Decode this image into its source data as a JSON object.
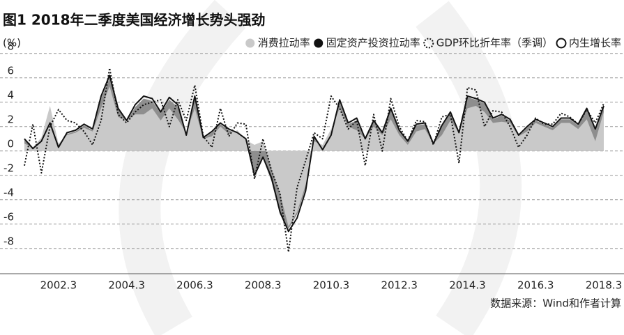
{
  "chart_data": {
    "type": "line",
    "title": "图1 2018年二季度美国经济增长势头强劲",
    "y_label": "(%)",
    "source": "数据来源：Wind和作者计算",
    "categories": [
      null,
      null,
      null,
      null,
      "2002.3",
      null,
      null,
      null,
      null,
      null,
      null,
      null,
      "2004.3",
      null,
      null,
      null,
      null,
      null,
      null,
      null,
      "2006.3",
      null,
      null,
      null,
      null,
      null,
      null,
      null,
      "2008.3",
      null,
      null,
      null,
      null,
      null,
      null,
      null,
      "2010.3",
      null,
      null,
      null,
      null,
      null,
      null,
      null,
      "2012.3",
      null,
      null,
      null,
      null,
      null,
      null,
      null,
      "2014.3",
      null,
      null,
      null,
      null,
      null,
      null,
      null,
      "2016.3",
      null,
      null,
      null,
      null,
      null,
      null,
      null,
      "2018.3"
    ],
    "ylim": [
      -9.5,
      8.5
    ],
    "yticks": [
      -8,
      -6,
      -4,
      -2,
      0,
      2,
      4,
      6,
      8
    ],
    "grid": true,
    "series": [
      {
        "name": "固定资产投资拉动率",
        "style": "area",
        "color": "#8e8e8e",
        "values": [
          0.9,
          0.2,
          0.7,
          2.2,
          0.3,
          1.4,
          1.6,
          2.1,
          1.7,
          4.3,
          6.0,
          3.4,
          2.4,
          3.6,
          4.3,
          4.1,
          3.1,
          4.2,
          3.6,
          1.2,
          4.3,
          1.0,
          1.5,
          2.2,
          1.7,
          1.4,
          0.9,
          -1.8,
          -0.6,
          -2.5,
          -5.2,
          -6.4,
          -5.2,
          -3.1,
          1.1,
          0.1,
          1.2,
          4.0,
          2.2,
          2.5,
          0.9,
          2.4,
          1.4,
          3.4,
          1.6,
          0.7,
          2.1,
          2.2,
          0.5,
          2.0,
          3.1,
          1.4,
          4.4,
          4.2,
          3.9,
          2.6,
          2.9,
          2.5,
          1.2,
          1.9,
          2.5,
          2.2,
          1.9,
          2.6,
          2.6,
          2.1,
          3.4,
          1.7,
          3.6
        ]
      },
      {
        "name": "消费拉动率",
        "style": "area",
        "color": "#c9c9c9",
        "values": [
          0.6,
          0.3,
          1.1,
          3.7,
          0.6,
          1.3,
          1.5,
          1.9,
          1.6,
          3.5,
          5.3,
          2.8,
          2.5,
          3.0,
          3.0,
          3.5,
          2.5,
          3.5,
          2.6,
          1.5,
          3.5,
          1.0,
          1.2,
          2.0,
          1.4,
          1.7,
          0.9,
          0.5,
          0.8,
          -1.5,
          -3.5,
          -6.2,
          -5.0,
          -2.8,
          0.8,
          0.5,
          1.8,
          3.5,
          2.0,
          1.7,
          1.0,
          2.0,
          1.3,
          2.6,
          1.3,
          0.5,
          1.6,
          1.8,
          0.6,
          1.3,
          2.5,
          1.5,
          3.5,
          3.7,
          3.2,
          2.3,
          2.4,
          2.3,
          1.2,
          1.6,
          2.3,
          2.0,
          1.7,
          2.3,
          2.3,
          1.8,
          2.6,
          0.8,
          3.2
        ]
      },
      {
        "name": "GDP环比折年率（季调）",
        "style": "dotted",
        "color": "#111111",
        "values": [
          -1.2,
          2.2,
          -1.8,
          2.0,
          3.4,
          2.5,
          2.3,
          1.6,
          0.5,
          2.5,
          6.8,
          3.0,
          2.3,
          3.2,
          3.8,
          4.0,
          4.2,
          2.0,
          4.2,
          2.5,
          5.4,
          1.2,
          0.3,
          3.5,
          1.2,
          2.3,
          2.2,
          -2.3,
          1.0,
          -1.6,
          -3.5,
          -8.3,
          -3.0,
          -0.8,
          1.5,
          1.0,
          4.5,
          3.5,
          1.8,
          2.5,
          -1.2,
          3.0,
          0.0,
          4.3,
          2.0,
          0.8,
          2.5,
          2.4,
          0.5,
          2.8,
          3.0,
          -1.0,
          5.2,
          5.0,
          2.0,
          3.3,
          3.2,
          2.0,
          0.3,
          1.3,
          2.7,
          2.2,
          2.2,
          3.1,
          2.8,
          2.2,
          3.4,
          2.3,
          3.9
        ]
      },
      {
        "name": "内生增长率",
        "style": "solid",
        "color": "#111111",
        "values": [
          1.0,
          0.2,
          0.8,
          2.3,
          0.3,
          1.5,
          1.7,
          2.2,
          1.8,
          4.5,
          6.2,
          3.5,
          2.5,
          3.8,
          4.5,
          4.3,
          3.2,
          4.4,
          3.8,
          1.3,
          4.5,
          1.1,
          1.6,
          2.3,
          1.8,
          1.5,
          1.0,
          -2.0,
          -0.5,
          -2.2,
          -5.0,
          -6.6,
          -5.5,
          -3.3,
          1.2,
          0.1,
          1.3,
          4.2,
          2.3,
          2.7,
          1.0,
          2.5,
          1.5,
          3.5,
          1.7,
          0.8,
          2.2,
          2.3,
          0.6,
          2.1,
          3.2,
          1.5,
          4.5,
          4.3,
          4.0,
          2.7,
          3.0,
          2.6,
          1.3,
          2.0,
          2.6,
          2.3,
          2.0,
          2.7,
          2.7,
          2.2,
          3.5,
          1.8,
          3.7
        ]
      }
    ]
  }
}
